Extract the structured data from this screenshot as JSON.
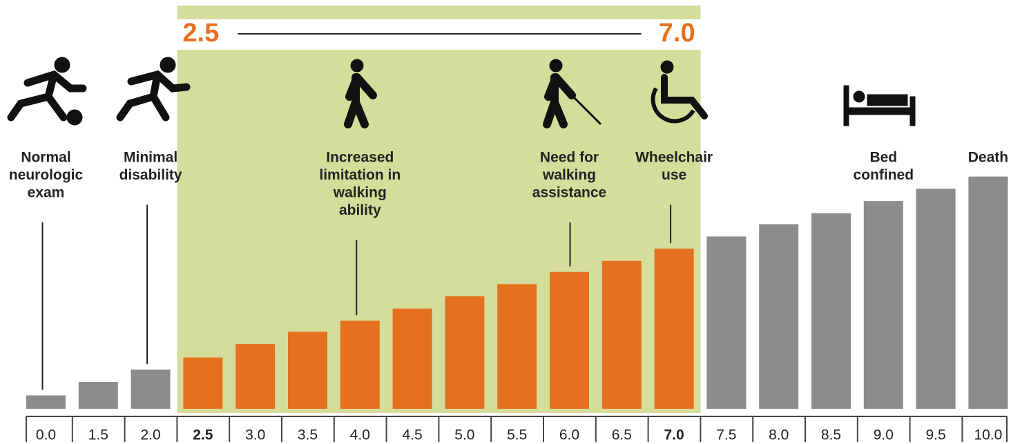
{
  "chart_data": {
    "type": "bar",
    "categories": [
      "0.0",
      "1.5",
      "2.0",
      "2.5",
      "3.0",
      "3.5",
      "4.0",
      "4.5",
      "5.0",
      "5.5",
      "6.0",
      "6.5",
      "7.0",
      "7.5",
      "8.0",
      "8.5",
      "9.0",
      "9.5",
      "10.0"
    ],
    "values": [
      1.1,
      2.2,
      3.2,
      4.2,
      5.3,
      6.3,
      7.2,
      8.2,
      9.2,
      10.2,
      11.2,
      12.1,
      13.1,
      14.1,
      15.1,
      16,
      17,
      18,
      19
    ],
    "ylim": [
      0,
      20
    ],
    "color": "#8c8c8f",
    "highlight": {
      "from": "2.5",
      "to": "7.0",
      "label_from": "2.5",
      "label_to": "7.0",
      "color": "#e5711f",
      "band_color": "#d5dd9b"
    },
    "annotations": [
      {
        "lines": [
          "Normal",
          "neurologic",
          "exam"
        ],
        "category": "0.0"
      },
      {
        "lines": [
          "Minimal",
          "disability"
        ],
        "category": "2.0"
      },
      {
        "lines": [
          "Increased",
          "limitation in",
          "walking",
          "ability"
        ],
        "category": "4.0"
      },
      {
        "lines": [
          "Need for",
          "walking",
          "assistance"
        ],
        "category": "6.0"
      },
      {
        "lines": [
          "Wheelchair",
          "use"
        ],
        "category": "7.0"
      },
      {
        "lines": [
          "Bed",
          "confined"
        ],
        "category": "9.0"
      },
      {
        "lines": [
          "Death"
        ],
        "category": "10.0"
      }
    ]
  }
}
